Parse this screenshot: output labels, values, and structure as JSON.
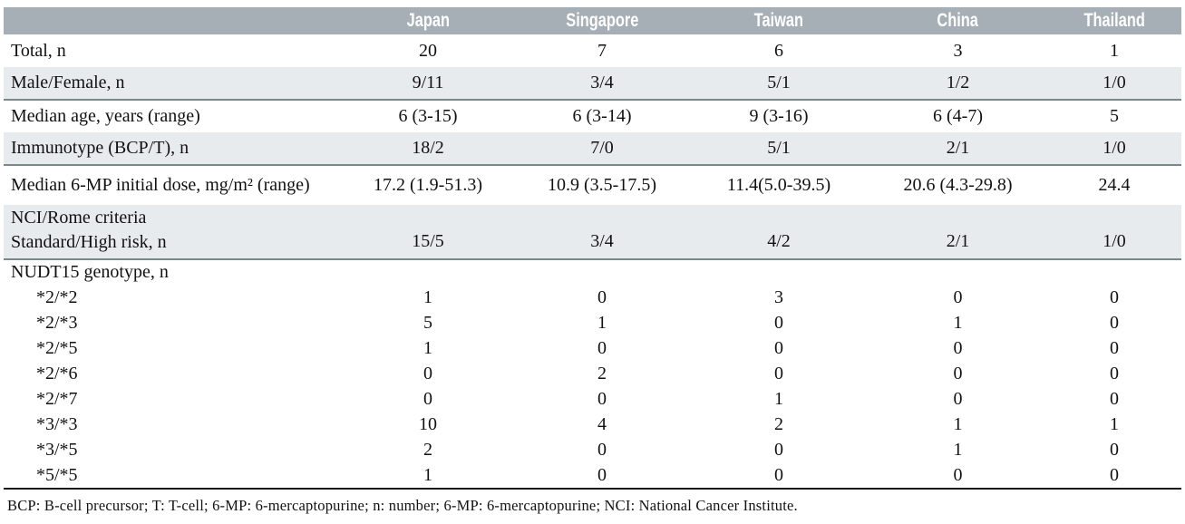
{
  "colors": {
    "header_bg": "#a6afb5",
    "header_text": "#ffffff",
    "stripe_bg": "#e8ebed",
    "section_border": "#7d888e",
    "footer_rule": "#1a1a1a"
  },
  "header": {
    "columns": [
      "Japan",
      "Singapore",
      "Taiwan",
      "China",
      "Thailand"
    ]
  },
  "rows": [
    {
      "label": "Total, n",
      "values": [
        "20",
        "7",
        "6",
        "3",
        "1"
      ],
      "shaded": false,
      "section_end": false,
      "indent": false,
      "size": "normal"
    },
    {
      "label": "Male/Female, n",
      "values": [
        "9/11",
        "3/4",
        "5/1",
        "1/2",
        "1/0"
      ],
      "shaded": true,
      "section_end": true,
      "indent": false,
      "size": "normal"
    },
    {
      "label": "Median age, years (range)",
      "values": [
        "6 (3-15)",
        "6 (3-14)",
        "9 (3-16)",
        "6 (4-7)",
        "5"
      ],
      "shaded": false,
      "section_end": false,
      "indent": false,
      "size": "normal"
    },
    {
      "label": "Immunotype (BCP/T), n",
      "values": [
        "18/2",
        "7/0",
        "5/1",
        "2/1",
        "1/0"
      ],
      "shaded": true,
      "section_end": true,
      "indent": false,
      "size": "normal"
    },
    {
      "label": "Median 6-MP initial dose, mg/m² (range)",
      "values": [
        "17.2 (1.9-51.3)",
        "10.9 (3.5-17.5)",
        "11.4(5.0-39.5)",
        "20.6 (4.3-29.8)",
        "24.4"
      ],
      "shaded": false,
      "section_end": false,
      "indent": false,
      "size": "tall"
    },
    {
      "label": "NCI/Rome criteria\nStandard/High risk, n",
      "values": [
        "15/5",
        "3/4",
        "4/2",
        "2/1",
        "1/0"
      ],
      "shaded": true,
      "section_end": true,
      "indent": false,
      "size": "two-line",
      "multiline": true
    },
    {
      "label": "NUDT15 genotype, n",
      "values": [
        "",
        "",
        "",
        "",
        ""
      ],
      "shaded": false,
      "section_end": false,
      "indent": false,
      "size": "compact"
    },
    {
      "label": "*2/*2",
      "values": [
        "1",
        "0",
        "3",
        "0",
        "0"
      ],
      "shaded": false,
      "section_end": false,
      "indent": true,
      "size": "compact"
    },
    {
      "label": "*2/*3",
      "values": [
        "5",
        "1",
        "0",
        "1",
        "0"
      ],
      "shaded": false,
      "section_end": false,
      "indent": true,
      "size": "compact"
    },
    {
      "label": "*2/*5",
      "values": [
        "1",
        "0",
        "0",
        "0",
        "0"
      ],
      "shaded": false,
      "section_end": false,
      "indent": true,
      "size": "compact"
    },
    {
      "label": "*2/*6",
      "values": [
        "0",
        "2",
        "0",
        "0",
        "0"
      ],
      "shaded": false,
      "section_end": false,
      "indent": true,
      "size": "compact"
    },
    {
      "label": "*2/*7",
      "values": [
        "0",
        "0",
        "1",
        "0",
        "0"
      ],
      "shaded": false,
      "section_end": false,
      "indent": true,
      "size": "compact"
    },
    {
      "label": "*3/*3",
      "values": [
        "10",
        "4",
        "2",
        "1",
        "1"
      ],
      "shaded": false,
      "section_end": false,
      "indent": true,
      "size": "compact"
    },
    {
      "label": "*3/*5",
      "values": [
        "2",
        "0",
        "0",
        "1",
        "0"
      ],
      "shaded": false,
      "section_end": false,
      "indent": true,
      "size": "compact"
    },
    {
      "label": "*5/*5",
      "values": [
        "1",
        "0",
        "0",
        "0",
        "0"
      ],
      "shaded": false,
      "section_end": false,
      "indent": true,
      "size": "compact"
    }
  ],
  "footer": {
    "note": "BCP: B-cell precursor; T: T-cell; 6-MP: 6-mercaptopurine; n: number; 6-MP: 6-mercaptopurine; NCI: National Cancer Institute."
  }
}
